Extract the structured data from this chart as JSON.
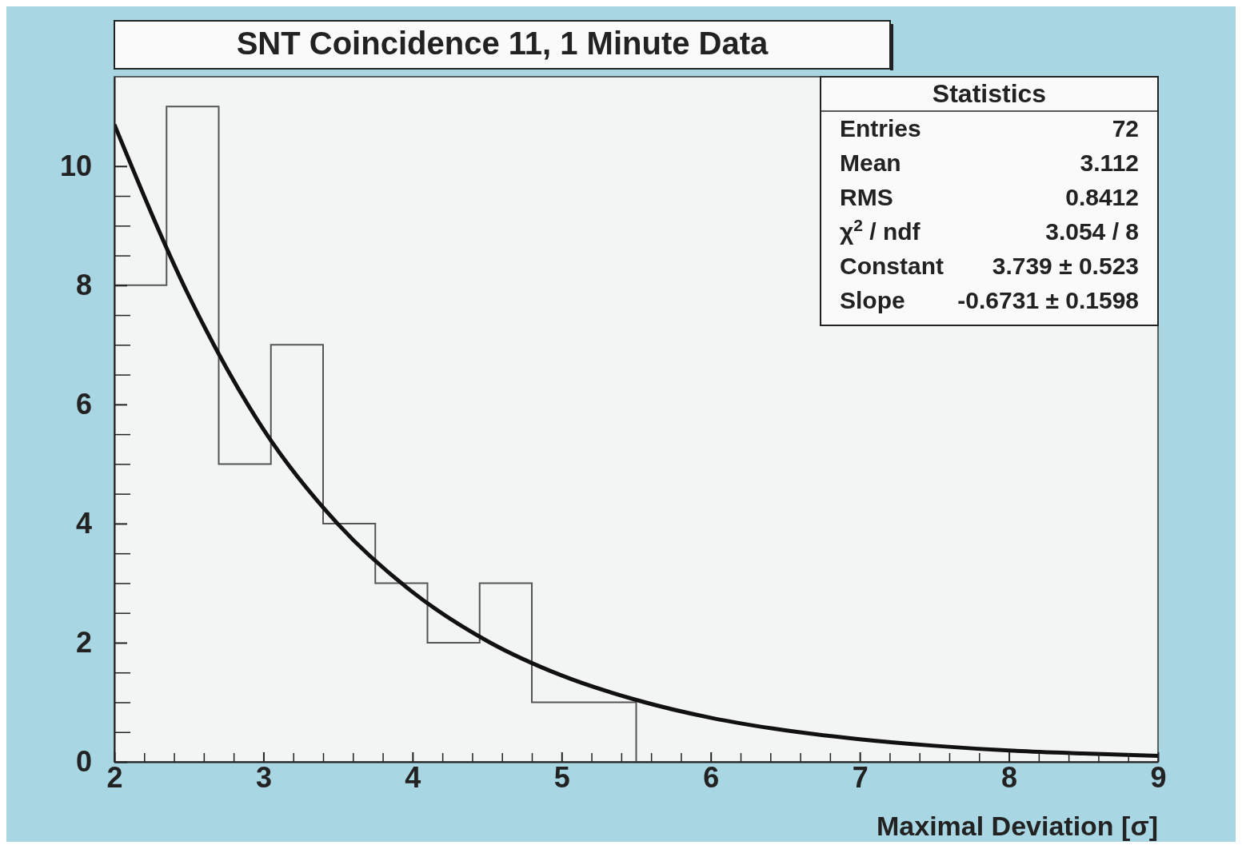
{
  "chart_data": {
    "type": "histogram",
    "title": "SNT Coincidence 11, 1 Minute Data",
    "xlabel": "Maximal Deviation [σ]",
    "bins": [
      2,
      2.35,
      2.7,
      3.05,
      3.4,
      3.75,
      4.1,
      4.45,
      4.8,
      5.15,
      5.5
    ],
    "values": [
      8,
      11,
      5,
      7,
      4,
      3,
      2,
      3,
      1,
      1
    ],
    "color": "#555555",
    "series": [
      {
        "type": "line",
        "color": "#111111",
        "x": [
          2,
          2.5,
          3,
          3.5,
          4,
          4.5,
          5,
          5.5,
          6,
          6.5,
          7,
          7.5,
          8,
          8.5,
          9
        ],
        "values": [
          10.7,
          7.82,
          5.58,
          3.99,
          2.85,
          2.03,
          1.45,
          1.04,
          0.74,
          0.53,
          0.38,
          0.27,
          0.19,
          0.14,
          0.1
        ]
      }
    ],
    "xlim": [
      2,
      9
    ],
    "xticks": [
      2,
      3,
      4,
      5,
      6,
      7,
      8,
      9
    ],
    "ylim": [
      0,
      11.5
    ],
    "yticks": [
      0,
      2,
      4,
      6,
      8,
      10
    ],
    "grid": false,
    "annotations": [
      "Statistics",
      "Entries",
      "72",
      "Mean",
      "3.112",
      "RMS",
      "0.8412",
      "χ$^{2}$ / ndf",
      "3.054 / 8",
      "Constant",
      "3.739 ± 0.523",
      "Slope",
      "-0.6731 ± 0.1598"
    ]
  }
}
